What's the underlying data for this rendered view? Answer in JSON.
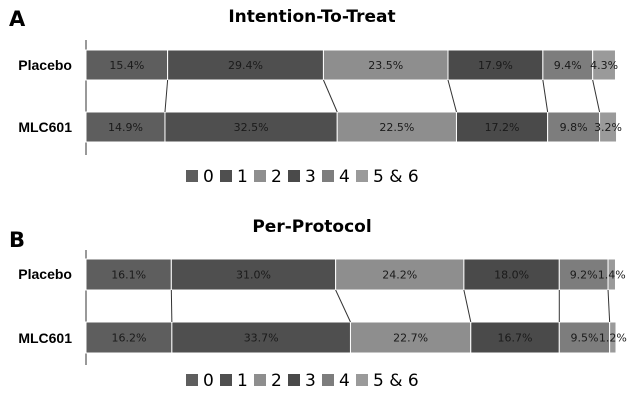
{
  "chart_data": [
    {
      "type": "bar",
      "orientation": "horizontal",
      "stacked": "100%",
      "panel_label": "A",
      "title": "Intention-To-Treat",
      "categories": [
        "Placebo",
        "MLC601"
      ],
      "series": [
        {
          "name": "0",
          "color": "#5e5e5e",
          "values": [
            15.4,
            14.9
          ]
        },
        {
          "name": "1",
          "color": "#4f4f4f",
          "values": [
            29.4,
            32.5
          ]
        },
        {
          "name": "2",
          "color": "#8e8e8e",
          "values": [
            23.5,
            22.5
          ]
        },
        {
          "name": "3",
          "color": "#4a4a4a",
          "values": [
            17.9,
            17.2
          ]
        },
        {
          "name": "4",
          "color": "#7d7d7d",
          "values": [
            9.4,
            9.8
          ]
        },
        {
          "name": "5 & 6",
          "color": "#9a9a9a",
          "values": [
            4.3,
            3.2
          ]
        }
      ],
      "value_labels": [
        [
          "15.4%",
          "29.4%",
          "23.5%",
          "17.9%",
          "9.4%",
          "4.3%"
        ],
        [
          "14.9%",
          "32.5%",
          "22.5%",
          "17.2%",
          "9.8%",
          "3.2%"
        ]
      ],
      "legend": {
        "position": "bottom",
        "entries": [
          "0",
          "1",
          "2",
          "3",
          "4",
          "5 & 6"
        ]
      },
      "xlim": [
        0,
        100
      ],
      "grid": false
    },
    {
      "type": "bar",
      "orientation": "horizontal",
      "stacked": "100%",
      "panel_label": "B",
      "title": "Per-Protocol",
      "categories": [
        "Placebo",
        "MLC601"
      ],
      "series": [
        {
          "name": "0",
          "color": "#5e5e5e",
          "values": [
            16.1,
            16.2
          ]
        },
        {
          "name": "1",
          "color": "#4f4f4f",
          "values": [
            31.0,
            33.7
          ]
        },
        {
          "name": "2",
          "color": "#8e8e8e",
          "values": [
            24.2,
            22.7
          ]
        },
        {
          "name": "3",
          "color": "#4a4a4a",
          "values": [
            18.0,
            16.7
          ]
        },
        {
          "name": "4",
          "color": "#7d7d7d",
          "values": [
            9.2,
            9.5
          ]
        },
        {
          "name": "5 & 6",
          "color": "#9a9a9a",
          "values": [
            1.4,
            1.2
          ]
        }
      ],
      "value_labels": [
        [
          "16.1%",
          "31.0%",
          "24.2%",
          "18.0%",
          "9.2%",
          "1.4%"
        ],
        [
          "16.2%",
          "33.7%",
          "22.7%",
          "16.7%",
          "9.5%",
          "1.2%"
        ]
      ],
      "legend": {
        "position": "bottom",
        "entries": [
          "0",
          "1",
          "2",
          "3",
          "4",
          "5 & 6"
        ]
      },
      "xlim": [
        0,
        100
      ],
      "grid": false
    }
  ]
}
